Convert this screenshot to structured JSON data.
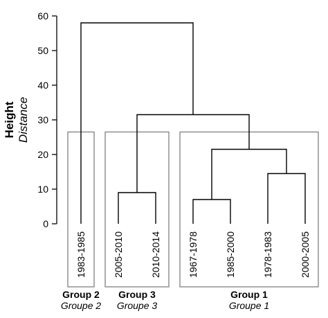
{
  "chart_data": {
    "type": "dendrogram",
    "ylabel": "Height",
    "ylabel_sub": "Distance",
    "ylim": [
      0,
      60
    ],
    "yticks": [
      0,
      10,
      20,
      30,
      40,
      50,
      60
    ],
    "leaves": [
      "1983-1985",
      "2005-2010",
      "2010-2014",
      "1967-1978",
      "1985-2000",
      "1978-1983",
      "2000-2005"
    ],
    "merges": [
      {
        "left": "1967-1978",
        "right": "1985-2000",
        "height": 7
      },
      {
        "left": "2005-2010",
        "right": "2010-2014",
        "height": 9
      },
      {
        "left": "1978-1983",
        "right": "2000-2005",
        "height": 14.5
      },
      {
        "left": "[1967-1978, 1985-2000]",
        "right": "[1978-1983, 2000-2005]",
        "height": 21.5
      },
      {
        "left": "Group 3",
        "right": "Group 1",
        "height": 31.5
      },
      {
        "left": "1983-1985",
        "right": "rest",
        "height": 58
      }
    ],
    "groups": [
      {
        "label": "Group 2",
        "label_sub": "Groupe 2",
        "leaves": [
          "1983-1985"
        ]
      },
      {
        "label": "Group 3",
        "label_sub": "Groupe 3",
        "leaves": [
          "2005-2010",
          "2010-2014"
        ]
      },
      {
        "label": "Group 1",
        "label_sub": "Groupe 1",
        "leaves": [
          "1967-1978",
          "1985-2000",
          "1978-1983",
          "2000-2005"
        ]
      }
    ],
    "box_height": 26.5,
    "colors": {
      "lines": "#000000",
      "boxes": "#808080"
    }
  }
}
